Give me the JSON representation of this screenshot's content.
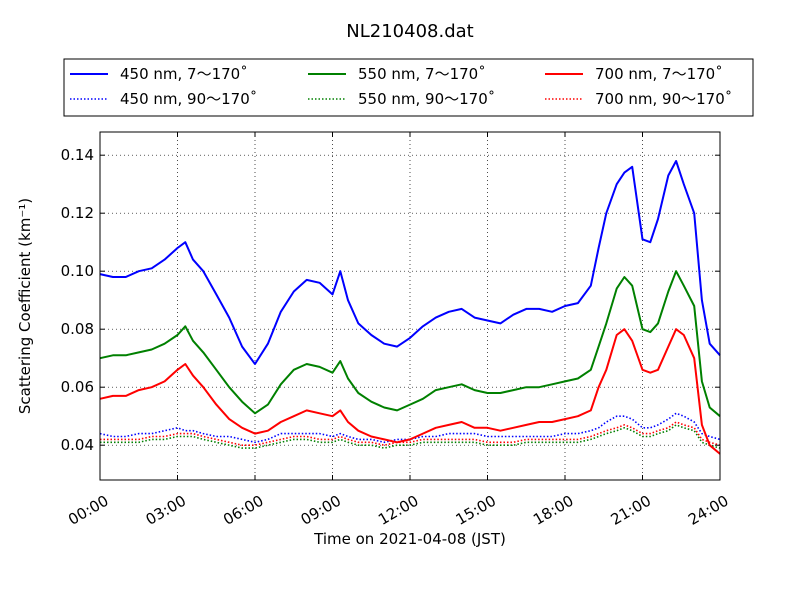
{
  "chart_data": {
    "type": "line",
    "title": "NL210408.dat",
    "xlabel": "Time on 2021-04-08 (JST)",
    "ylabel": "Scattering Coefficient (km⁻¹)",
    "xlim": [
      0,
      24
    ],
    "ylim": [
      0.028,
      0.148
    ],
    "x_ticks": [
      0,
      3,
      6,
      9,
      12,
      15,
      18,
      21,
      24
    ],
    "x_tick_labels": [
      "00:00",
      "03:00",
      "06:00",
      "09:00",
      "12:00",
      "15:00",
      "18:00",
      "21:00",
      "24:00"
    ],
    "y_ticks": [
      0.04,
      0.06,
      0.08,
      0.1,
      0.12,
      0.14
    ],
    "y_tick_labels": [
      "0.04",
      "0.06",
      "0.08",
      "0.10",
      "0.12",
      "0.14"
    ],
    "grid": true,
    "legend_position": "top, above plot",
    "x": [
      0,
      0.5,
      1,
      1.5,
      2,
      2.5,
      3,
      3.3,
      3.6,
      4,
      4.5,
      5,
      5.5,
      6,
      6.5,
      7,
      7.5,
      8,
      8.5,
      9,
      9.3,
      9.6,
      10,
      10.5,
      11,
      11.5,
      12,
      12.5,
      13,
      13.5,
      14,
      14.5,
      15,
      15.5,
      16,
      16.5,
      17,
      17.5,
      18,
      18.5,
      19,
      19.3,
      19.6,
      20,
      20.3,
      20.6,
      21,
      21.3,
      21.6,
      22,
      22.3,
      22.6,
      23,
      23.3,
      23.6,
      24
    ],
    "series": [
      {
        "name": "450 nm, 7～170˚",
        "color": "#0000ff",
        "style": "solid",
        "values": [
          0.099,
          0.098,
          0.098,
          0.1,
          0.101,
          0.104,
          0.108,
          0.11,
          0.104,
          0.1,
          0.092,
          0.084,
          0.074,
          0.068,
          0.075,
          0.086,
          0.093,
          0.097,
          0.096,
          0.092,
          0.1,
          0.09,
          0.082,
          0.078,
          0.075,
          0.074,
          0.077,
          0.081,
          0.084,
          0.086,
          0.087,
          0.084,
          0.083,
          0.082,
          0.085,
          0.087,
          0.087,
          0.086,
          0.088,
          0.089,
          0.095,
          0.108,
          0.12,
          0.13,
          0.134,
          0.136,
          0.111,
          0.11,
          0.118,
          0.133,
          0.138,
          0.13,
          0.12,
          0.09,
          0.075,
          0.071
        ]
      },
      {
        "name": "450 nm, 90～170˚",
        "color": "#0000ff",
        "style": "dotted",
        "values": [
          0.044,
          0.043,
          0.043,
          0.044,
          0.044,
          0.045,
          0.046,
          0.045,
          0.045,
          0.044,
          0.043,
          0.043,
          0.042,
          0.041,
          0.042,
          0.044,
          0.044,
          0.044,
          0.044,
          0.043,
          0.044,
          0.043,
          0.042,
          0.042,
          0.041,
          0.042,
          0.042,
          0.043,
          0.043,
          0.044,
          0.044,
          0.044,
          0.043,
          0.043,
          0.043,
          0.043,
          0.043,
          0.043,
          0.044,
          0.044,
          0.045,
          0.046,
          0.048,
          0.05,
          0.05,
          0.049,
          0.046,
          0.046,
          0.047,
          0.049,
          0.051,
          0.05,
          0.048,
          0.044,
          0.043,
          0.042
        ]
      },
      {
        "name": "550 nm, 7～170˚",
        "color": "#008000",
        "style": "solid",
        "values": [
          0.07,
          0.071,
          0.071,
          0.072,
          0.073,
          0.075,
          0.078,
          0.081,
          0.076,
          0.072,
          0.066,
          0.06,
          0.055,
          0.051,
          0.054,
          0.061,
          0.066,
          0.068,
          0.067,
          0.065,
          0.069,
          0.063,
          0.058,
          0.055,
          0.053,
          0.052,
          0.054,
          0.056,
          0.059,
          0.06,
          0.061,
          0.059,
          0.058,
          0.058,
          0.059,
          0.06,
          0.06,
          0.061,
          0.062,
          0.063,
          0.066,
          0.074,
          0.082,
          0.094,
          0.098,
          0.095,
          0.08,
          0.079,
          0.082,
          0.093,
          0.1,
          0.095,
          0.088,
          0.062,
          0.053,
          0.05
        ]
      },
      {
        "name": "550 nm, 90～170˚",
        "color": "#008000",
        "style": "dotted",
        "values": [
          0.041,
          0.041,
          0.041,
          0.041,
          0.042,
          0.042,
          0.043,
          0.043,
          0.043,
          0.042,
          0.041,
          0.04,
          0.039,
          0.039,
          0.04,
          0.041,
          0.042,
          0.042,
          0.041,
          0.041,
          0.042,
          0.041,
          0.04,
          0.04,
          0.039,
          0.04,
          0.04,
          0.041,
          0.041,
          0.041,
          0.041,
          0.041,
          0.04,
          0.04,
          0.04,
          0.041,
          0.041,
          0.041,
          0.041,
          0.041,
          0.042,
          0.043,
          0.044,
          0.045,
          0.046,
          0.045,
          0.043,
          0.043,
          0.044,
          0.045,
          0.047,
          0.046,
          0.045,
          0.041,
          0.04,
          0.039
        ]
      },
      {
        "name": "700 nm, 7～170˚",
        "color": "#ff0000",
        "style": "solid",
        "values": [
          0.056,
          0.057,
          0.057,
          0.059,
          0.06,
          0.062,
          0.066,
          0.068,
          0.064,
          0.06,
          0.054,
          0.049,
          0.046,
          0.044,
          0.045,
          0.048,
          0.05,
          0.052,
          0.051,
          0.05,
          0.052,
          0.048,
          0.045,
          0.043,
          0.042,
          0.041,
          0.042,
          0.044,
          0.046,
          0.047,
          0.048,
          0.046,
          0.046,
          0.045,
          0.046,
          0.047,
          0.048,
          0.048,
          0.049,
          0.05,
          0.052,
          0.06,
          0.066,
          0.078,
          0.08,
          0.076,
          0.066,
          0.065,
          0.066,
          0.074,
          0.08,
          0.078,
          0.07,
          0.047,
          0.04,
          0.037
        ]
      },
      {
        "name": "700 nm, 90～170˚",
        "color": "#ff0000",
        "style": "dotted",
        "values": [
          0.042,
          0.042,
          0.042,
          0.042,
          0.043,
          0.043,
          0.044,
          0.044,
          0.044,
          0.043,
          0.042,
          0.041,
          0.04,
          0.04,
          0.041,
          0.042,
          0.043,
          0.043,
          0.042,
          0.042,
          0.043,
          0.042,
          0.041,
          0.041,
          0.04,
          0.041,
          0.041,
          0.042,
          0.042,
          0.042,
          0.042,
          0.042,
          0.041,
          0.041,
          0.041,
          0.042,
          0.042,
          0.042,
          0.042,
          0.042,
          0.043,
          0.044,
          0.045,
          0.046,
          0.047,
          0.046,
          0.044,
          0.044,
          0.045,
          0.046,
          0.048,
          0.047,
          0.046,
          0.042,
          0.041,
          0.04
        ]
      }
    ]
  }
}
